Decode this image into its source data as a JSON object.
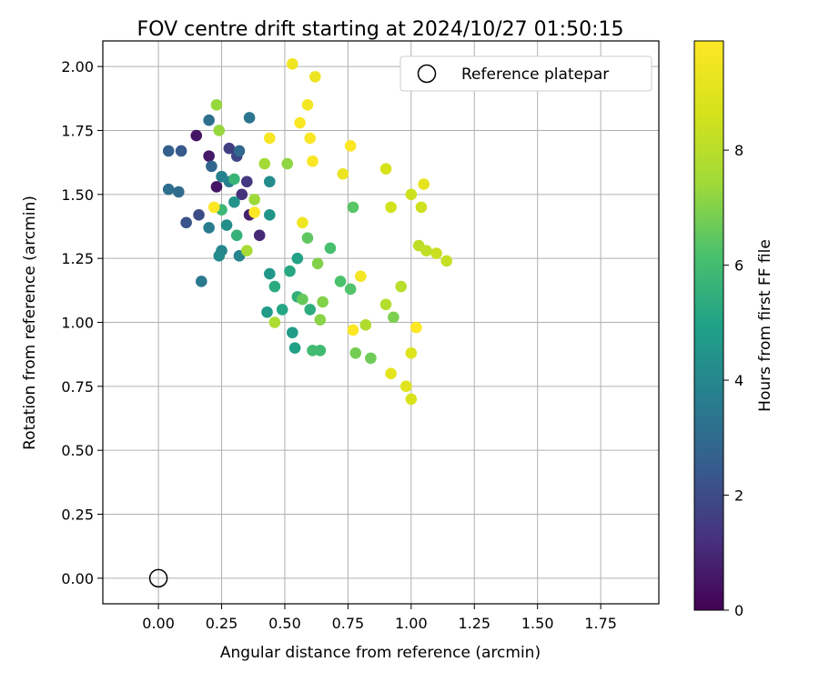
{
  "chart_data": {
    "type": "scatter",
    "title": "FOV centre drift starting at 2024/10/27 01:50:15",
    "xlabel": "Angular distance from reference (arcmin)",
    "ylabel": "Rotation from reference (arcmin)",
    "xlim": [
      -0.22,
      1.98
    ],
    "ylim": [
      -0.1,
      2.1
    ],
    "xticks": [
      "0.00",
      "0.25",
      "0.50",
      "0.75",
      "1.00",
      "1.25",
      "1.50",
      "1.75"
    ],
    "yticks": [
      "0.00",
      "0.25",
      "0.50",
      "0.75",
      "1.00",
      "1.25",
      "1.50",
      "1.75",
      "2.00"
    ],
    "grid": true,
    "legend": {
      "placement": "top-right",
      "entries": [
        "Reference platepar"
      ]
    },
    "reference_point": {
      "x": 0.0,
      "y": 0.0
    },
    "colorbar": {
      "label": "Hours from first FF file",
      "range": [
        0,
        9.9
      ],
      "ticks": [
        "0",
        "2",
        "4",
        "6",
        "8"
      ],
      "colormap": "viridis"
    },
    "points": [
      {
        "x": 0.15,
        "y": 1.73,
        "h": 0.5
      },
      {
        "x": 0.23,
        "y": 1.53,
        "h": 0.5
      },
      {
        "x": 0.2,
        "y": 1.65,
        "h": 0.6
      },
      {
        "x": 0.36,
        "y": 1.42,
        "h": 0.8
      },
      {
        "x": 0.4,
        "y": 1.34,
        "h": 1.0
      },
      {
        "x": 0.33,
        "y": 1.5,
        "h": 1.2
      },
      {
        "x": 0.35,
        "y": 1.55,
        "h": 1.4
      },
      {
        "x": 0.28,
        "y": 1.68,
        "h": 1.6
      },
      {
        "x": 0.31,
        "y": 1.65,
        "h": 1.8
      },
      {
        "x": 0.16,
        "y": 1.42,
        "h": 2.0
      },
      {
        "x": 0.11,
        "y": 1.39,
        "h": 2.2
      },
      {
        "x": 0.09,
        "y": 1.67,
        "h": 2.4
      },
      {
        "x": 0.04,
        "y": 1.67,
        "h": 2.6
      },
      {
        "x": 0.21,
        "y": 1.61,
        "h": 2.8
      },
      {
        "x": 0.32,
        "y": 1.67,
        "h": 2.9
      },
      {
        "x": 0.08,
        "y": 1.51,
        "h": 3.0
      },
      {
        "x": 0.04,
        "y": 1.52,
        "h": 3.1
      },
      {
        "x": 0.2,
        "y": 1.79,
        "h": 3.2
      },
      {
        "x": 0.36,
        "y": 1.8,
        "h": 3.4
      },
      {
        "x": 0.17,
        "y": 1.16,
        "h": 3.5
      },
      {
        "x": 0.2,
        "y": 1.37,
        "h": 3.6
      },
      {
        "x": 0.28,
        "y": 1.55,
        "h": 3.7
      },
      {
        "x": 0.25,
        "y": 1.57,
        "h": 3.8
      },
      {
        "x": 0.32,
        "y": 1.26,
        "h": 3.9
      },
      {
        "x": 0.25,
        "y": 1.28,
        "h": 4.0
      },
      {
        "x": 0.24,
        "y": 1.26,
        "h": 4.1
      },
      {
        "x": 0.44,
        "y": 1.55,
        "h": 4.2
      },
      {
        "x": 0.27,
        "y": 1.38,
        "h": 4.3
      },
      {
        "x": 0.3,
        "y": 1.47,
        "h": 4.4
      },
      {
        "x": 0.44,
        "y": 1.42,
        "h": 4.5
      },
      {
        "x": 0.44,
        "y": 1.19,
        "h": 4.6
      },
      {
        "x": 0.43,
        "y": 1.04,
        "h": 4.7
      },
      {
        "x": 0.53,
        "y": 0.96,
        "h": 4.8
      },
      {
        "x": 0.54,
        "y": 0.9,
        "h": 4.9
      },
      {
        "x": 0.55,
        "y": 1.25,
        "h": 5.0
      },
      {
        "x": 0.49,
        "y": 1.05,
        "h": 5.1
      },
      {
        "x": 0.52,
        "y": 1.2,
        "h": 5.2
      },
      {
        "x": 0.46,
        "y": 1.14,
        "h": 5.3
      },
      {
        "x": 0.6,
        "y": 1.05,
        "h": 5.4
      },
      {
        "x": 0.55,
        "y": 1.1,
        "h": 5.5
      },
      {
        "x": 0.31,
        "y": 1.34,
        "h": 5.6
      },
      {
        "x": 0.3,
        "y": 1.56,
        "h": 5.7
      },
      {
        "x": 0.25,
        "y": 1.44,
        "h": 5.8
      },
      {
        "x": 0.64,
        "y": 0.89,
        "h": 5.9
      },
      {
        "x": 0.61,
        "y": 0.89,
        "h": 6.0
      },
      {
        "x": 0.68,
        "y": 1.29,
        "h": 6.1
      },
      {
        "x": 0.72,
        "y": 1.16,
        "h": 6.2
      },
      {
        "x": 0.76,
        "y": 1.13,
        "h": 6.3
      },
      {
        "x": 0.77,
        "y": 1.45,
        "h": 6.4
      },
      {
        "x": 0.59,
        "y": 1.33,
        "h": 6.5
      },
      {
        "x": 0.57,
        "y": 1.09,
        "h": 6.6
      },
      {
        "x": 0.84,
        "y": 0.86,
        "h": 6.7
      },
      {
        "x": 0.78,
        "y": 0.88,
        "h": 6.8
      },
      {
        "x": 0.93,
        "y": 1.02,
        "h": 6.9
      },
      {
        "x": 0.65,
        "y": 1.08,
        "h": 7.0
      },
      {
        "x": 0.63,
        "y": 1.23,
        "h": 7.0
      },
      {
        "x": 0.64,
        "y": 1.01,
        "h": 7.1
      },
      {
        "x": 0.51,
        "y": 1.62,
        "h": 7.2
      },
      {
        "x": 0.23,
        "y": 1.85,
        "h": 7.3
      },
      {
        "x": 0.24,
        "y": 1.75,
        "h": 7.3
      },
      {
        "x": 0.38,
        "y": 1.48,
        "h": 7.4
      },
      {
        "x": 0.42,
        "y": 1.62,
        "h": 7.5
      },
      {
        "x": 0.35,
        "y": 1.28,
        "h": 7.6
      },
      {
        "x": 0.46,
        "y": 1.0,
        "h": 7.7
      },
      {
        "x": 0.82,
        "y": 0.99,
        "h": 7.8
      },
      {
        "x": 0.9,
        "y": 1.07,
        "h": 7.9
      },
      {
        "x": 0.96,
        "y": 1.14,
        "h": 8.0
      },
      {
        "x": 1.03,
        "y": 1.3,
        "h": 8.1
      },
      {
        "x": 1.06,
        "y": 1.28,
        "h": 8.2
      },
      {
        "x": 1.14,
        "y": 1.24,
        "h": 8.3
      },
      {
        "x": 1.1,
        "y": 1.27,
        "h": 8.4
      },
      {
        "x": 1.0,
        "y": 1.5,
        "h": 8.5
      },
      {
        "x": 1.04,
        "y": 1.45,
        "h": 8.5
      },
      {
        "x": 0.92,
        "y": 1.45,
        "h": 8.6
      },
      {
        "x": 0.9,
        "y": 1.6,
        "h": 8.7
      },
      {
        "x": 1.0,
        "y": 0.7,
        "h": 8.8
      },
      {
        "x": 1.0,
        "y": 0.88,
        "h": 8.9
      },
      {
        "x": 0.98,
        "y": 0.75,
        "h": 9.0
      },
      {
        "x": 0.92,
        "y": 0.8,
        "h": 9.1
      },
      {
        "x": 1.05,
        "y": 1.54,
        "h": 9.2
      },
      {
        "x": 0.73,
        "y": 1.58,
        "h": 9.3
      },
      {
        "x": 0.62,
        "y": 1.96,
        "h": 9.4
      },
      {
        "x": 0.53,
        "y": 2.01,
        "h": 9.5
      },
      {
        "x": 0.59,
        "y": 1.85,
        "h": 9.6
      },
      {
        "x": 0.44,
        "y": 1.72,
        "h": 9.7
      },
      {
        "x": 0.56,
        "y": 1.78,
        "h": 9.8
      },
      {
        "x": 0.6,
        "y": 1.72,
        "h": 9.8
      },
      {
        "x": 0.76,
        "y": 1.69,
        "h": 9.9
      },
      {
        "x": 0.38,
        "y": 1.43,
        "h": 9.9
      },
      {
        "x": 1.02,
        "y": 0.98,
        "h": 9.9
      },
      {
        "x": 0.77,
        "y": 0.97,
        "h": 9.9
      },
      {
        "x": 0.22,
        "y": 1.45,
        "h": 9.9
      },
      {
        "x": 0.61,
        "y": 1.63,
        "h": 9.8
      },
      {
        "x": 0.8,
        "y": 1.18,
        "h": 9.6
      },
      {
        "x": 0.57,
        "y": 1.39,
        "h": 9.5
      }
    ]
  }
}
